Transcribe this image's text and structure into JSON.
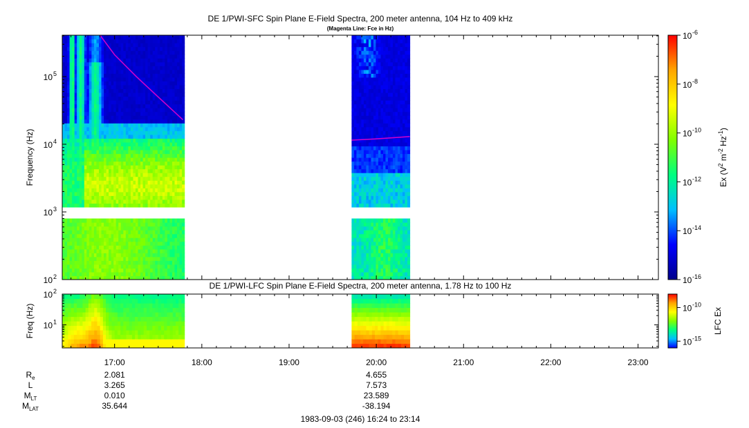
{
  "chart_data": [
    {
      "type": "heatmap",
      "title": "DE 1/PWI-SFC  Spin Plane E-Field Spectra, 200 meter antenna, 104 Hz to 409 kHz",
      "subtitle": "(Magenta Line: Fce in Hz)",
      "ylabel": "Frequency (Hz)",
      "yscale": "log",
      "ylim": [
        100,
        409000
      ],
      "y_ticks": [
        {
          "value": 100,
          "base": "10",
          "exp": "2"
        },
        {
          "value": 1000,
          "base": "10",
          "exp": "3"
        },
        {
          "value": 10000,
          "base": "10",
          "exp": "4"
        },
        {
          "value": 100000,
          "base": "10",
          "exp": "5"
        }
      ],
      "colorbar": {
        "label_parts": [
          "Ex (V",
          "2",
          " m",
          "-2",
          " Hz",
          "-1",
          ")"
        ],
        "scale": "log",
        "range": [
          1e-16,
          1e-06
        ],
        "colors": [
          "#00008b",
          "#0000ff",
          "#00bfff",
          "#00ff80",
          "#80ff00",
          "#ffff00",
          "#ffa500",
          "#ff0000"
        ],
        "ticks": [
          {
            "value": 1e-06,
            "base": "10",
            "exp": "-6"
          },
          {
            "value": 1e-08,
            "base": "10",
            "exp": "-8"
          },
          {
            "value": 1e-10,
            "base": "10",
            "exp": "-10"
          },
          {
            "value": 1e-12,
            "base": "10",
            "exp": "-12"
          },
          {
            "value": 1e-14,
            "base": "10",
            "exp": "-14"
          },
          {
            "value": 1e-16,
            "base": "10",
            "exp": "-16"
          }
        ]
      },
      "data_intervals": [
        {
          "start": "16:24",
          "end": "17:48"
        },
        {
          "start": "19:43",
          "end": "20:23"
        }
      ],
      "gap_band_hz": [
        900,
        1100
      ],
      "fce_line": [
        {
          "segment": [
            {
              "t": "16:50",
              "f": 409000
            },
            {
              "t": "17:00",
              "f": 210000
            },
            {
              "t": "17:15",
              "f": 100000
            },
            {
              "t": "17:30",
              "f": 50000
            },
            {
              "t": "17:47",
              "f": 23000
            }
          ]
        },
        {
          "segment": [
            {
              "t": "19:43",
              "f": 11500
            },
            {
              "t": "20:00",
              "f": 12000
            },
            {
              "t": "20:23",
              "f": 13000
            }
          ]
        }
      ],
      "fce_color": "#cc00cc"
    },
    {
      "type": "heatmap",
      "title": "DE 1/PWI-LFC  Spin Plane E-Field Spectra, 200 meter antenna, 1.78 Hz to 100 Hz",
      "ylabel": "Freq (Hz)",
      "yscale": "log",
      "ylim": [
        1.78,
        100
      ],
      "y_ticks": [
        {
          "value": 10,
          "base": "10",
          "exp": "1"
        },
        {
          "value": 100,
          "base": "10",
          "exp": "2"
        }
      ],
      "colorbar": {
        "label": "LFC Ex",
        "scale": "log",
        "range": [
          1e-16,
          1e-08
        ],
        "colors": [
          "#0000ff",
          "#00bfff",
          "#00ff80",
          "#80ff00",
          "#ffff00",
          "#ffa500",
          "#ff0000"
        ],
        "ticks": [
          {
            "value": 1e-10,
            "base": "10",
            "exp": "-10"
          },
          {
            "value": 1e-15,
            "base": "10",
            "exp": "-15"
          }
        ]
      },
      "data_intervals": [
        {
          "start": "16:24",
          "end": "17:48"
        },
        {
          "start": "19:43",
          "end": "20:23"
        }
      ]
    }
  ],
  "x_axis": {
    "range_minutes": [
      984,
      1394
    ],
    "ticks": [
      "17:00",
      "18:00",
      "19:00",
      "20:00",
      "21:00",
      "22:00",
      "23:00"
    ]
  },
  "ephemeris": {
    "labels": [
      {
        "main": "R",
        "sub": "e"
      },
      {
        "main": "L",
        "sub": ""
      },
      {
        "main": "M",
        "sub": "LT"
      },
      {
        "main": "M",
        "sub": "LAT"
      }
    ],
    "columns": [
      {
        "time": "17:00",
        "values": [
          "2.081",
          "3.265",
          "0.010",
          "35.644"
        ]
      },
      {
        "time": "20:00",
        "values": [
          "4.655",
          "7.573",
          "23.589",
          "-38.194"
        ]
      }
    ]
  },
  "footer": "1983-09-03 (246) 16:24 to 23:14"
}
